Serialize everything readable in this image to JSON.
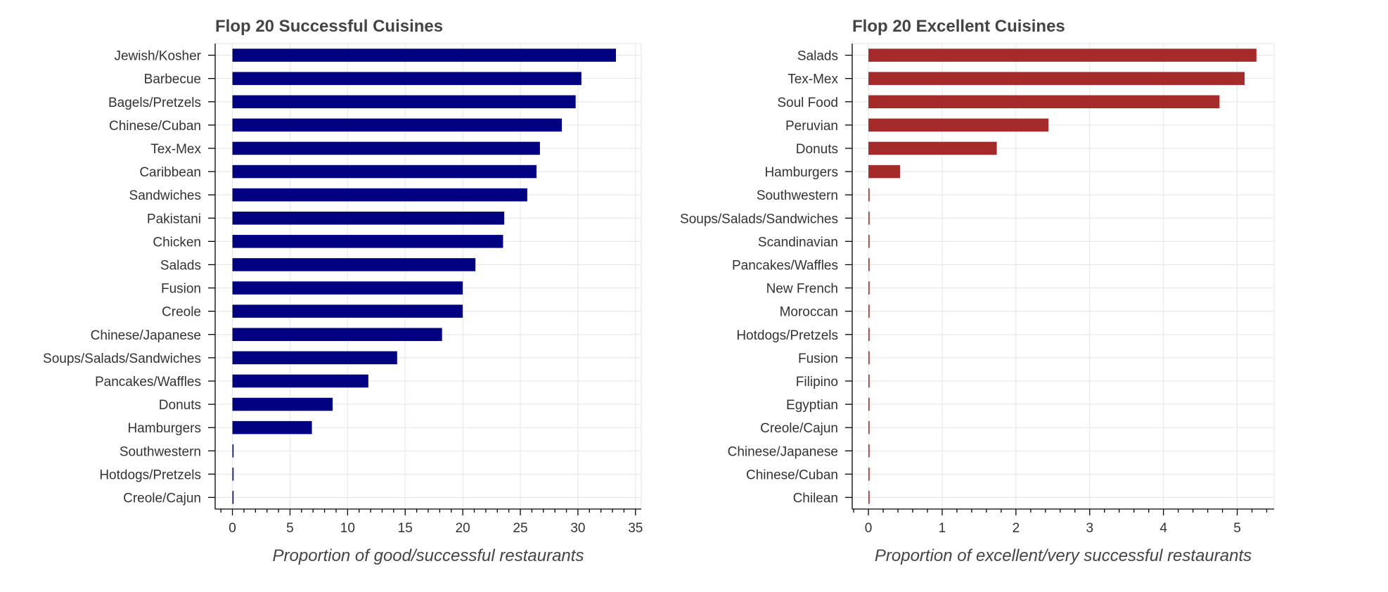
{
  "chart_data": [
    {
      "type": "bar",
      "orientation": "horizontal",
      "title": "Flop 20 Successful Cuisines",
      "xlabel": "Proportion of good/successful restaurants",
      "ylabel": "",
      "categories": [
        "Jewish/Kosher",
        "Barbecue",
        "Bagels/Pretzels",
        "Chinese/Cuban",
        "Tex-Mex",
        "Caribbean",
        "Sandwiches",
        "Pakistani",
        "Chicken",
        "Salads",
        "Fusion",
        "Creole",
        "Chinese/Japanese",
        "Soups/Salads/Sandwiches",
        "Pancakes/Waffles",
        "Donuts",
        "Hamburgers",
        "Southwestern",
        "Hotdogs/Pretzels",
        "Creole/Cajun"
      ],
      "values": [
        33.3,
        30.3,
        29.8,
        28.6,
        26.7,
        26.4,
        25.6,
        23.6,
        23.5,
        21.1,
        20.0,
        20.0,
        18.2,
        14.3,
        11.8,
        8.7,
        6.9,
        0,
        0,
        0
      ],
      "xlim": [
        -1.5,
        35.5
      ],
      "xticks": [
        0,
        5,
        10,
        15,
        20,
        25,
        30,
        35
      ],
      "xtick_labels": [
        "0",
        "5",
        "10",
        "15",
        "20",
        "25",
        "30",
        "35"
      ],
      "color": "#000080",
      "grid": true
    },
    {
      "type": "bar",
      "orientation": "horizontal",
      "title": "Flop 20 Excellent Cuisines",
      "xlabel": "Proportion of excellent/very successful restaurants",
      "ylabel": "",
      "categories": [
        "Salads",
        "Tex-Mex",
        "Soul Food",
        "Peruvian",
        "Donuts",
        "Hamburgers",
        "Southwestern",
        "Soups/Salads/Sandwiches",
        "Scandinavian",
        "Pancakes/Waffles",
        "New French",
        "Moroccan",
        "Hotdogs/Pretzels",
        "Fusion",
        "Filipino",
        "Egyptian",
        "Creole/Cajun",
        "Chinese/Japanese",
        "Chinese/Cuban",
        "Chilean"
      ],
      "values": [
        5.26,
        5.1,
        4.76,
        2.44,
        1.74,
        0.43,
        0,
        0,
        0,
        0,
        0,
        0,
        0,
        0,
        0,
        0,
        0,
        0,
        0,
        0
      ],
      "xlim": [
        -0.22,
        5.5
      ],
      "xticks": [
        0,
        1,
        2,
        3,
        4,
        5
      ],
      "xtick_labels": [
        "0",
        "1",
        "2",
        "3",
        "4",
        "5"
      ],
      "color": "#a52a2a",
      "grid": true
    }
  ]
}
